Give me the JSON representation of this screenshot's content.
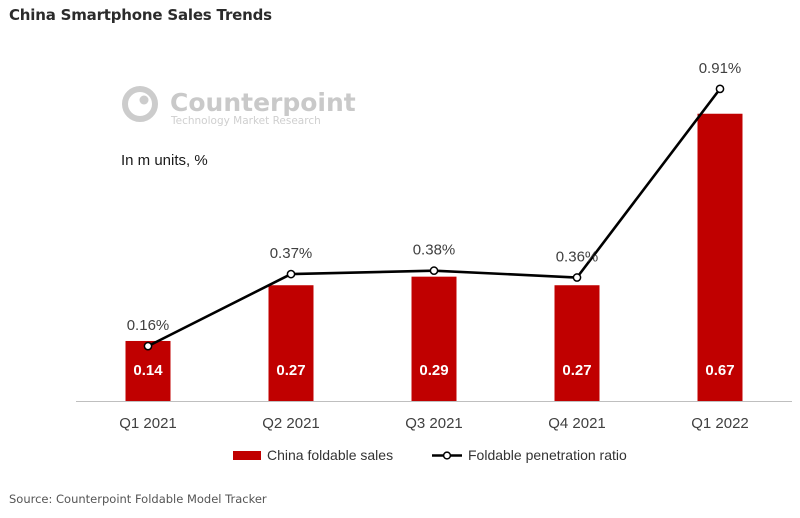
{
  "page_title": "China Smartphone Sales Trends",
  "watermark": {
    "name": "Counterpoint",
    "tagline": "Technology Market Research"
  },
  "units_label": "In m units, %",
  "source": "Source: Counterpoint Foldable Model Tracker",
  "colors": {
    "bar": "#c00000",
    "line": "#000000",
    "axis": "#bfbfbf"
  },
  "chart_data": {
    "type": "bar",
    "title": "China Smartphone Sales Trends",
    "xlabel": "",
    "ylabel": "In m units, %",
    "categories": [
      "Q1 2021",
      "Q2 2021",
      "Q3 2021",
      "Q4 2021",
      "Q1 2022"
    ],
    "series": [
      {
        "name": "China foldable sales",
        "type": "bar",
        "axis": "primary",
        "values": [
          0.14,
          0.27,
          0.29,
          0.27,
          0.67
        ],
        "labels": [
          "0.14",
          "0.27",
          "0.29",
          "0.27",
          "0.67"
        ]
      },
      {
        "name": "Foldable penetration ratio",
        "type": "line",
        "axis": "secondary",
        "values": [
          0.16,
          0.37,
          0.38,
          0.36,
          0.91
        ],
        "labels": [
          "0.16%",
          "0.37%",
          "0.38%",
          "0.36%",
          "0.91%"
        ]
      }
    ],
    "ylim": [
      0,
      0.8
    ],
    "y2lim": [
      0,
      1.0
    ],
    "grid": false,
    "legend": "bottom"
  }
}
